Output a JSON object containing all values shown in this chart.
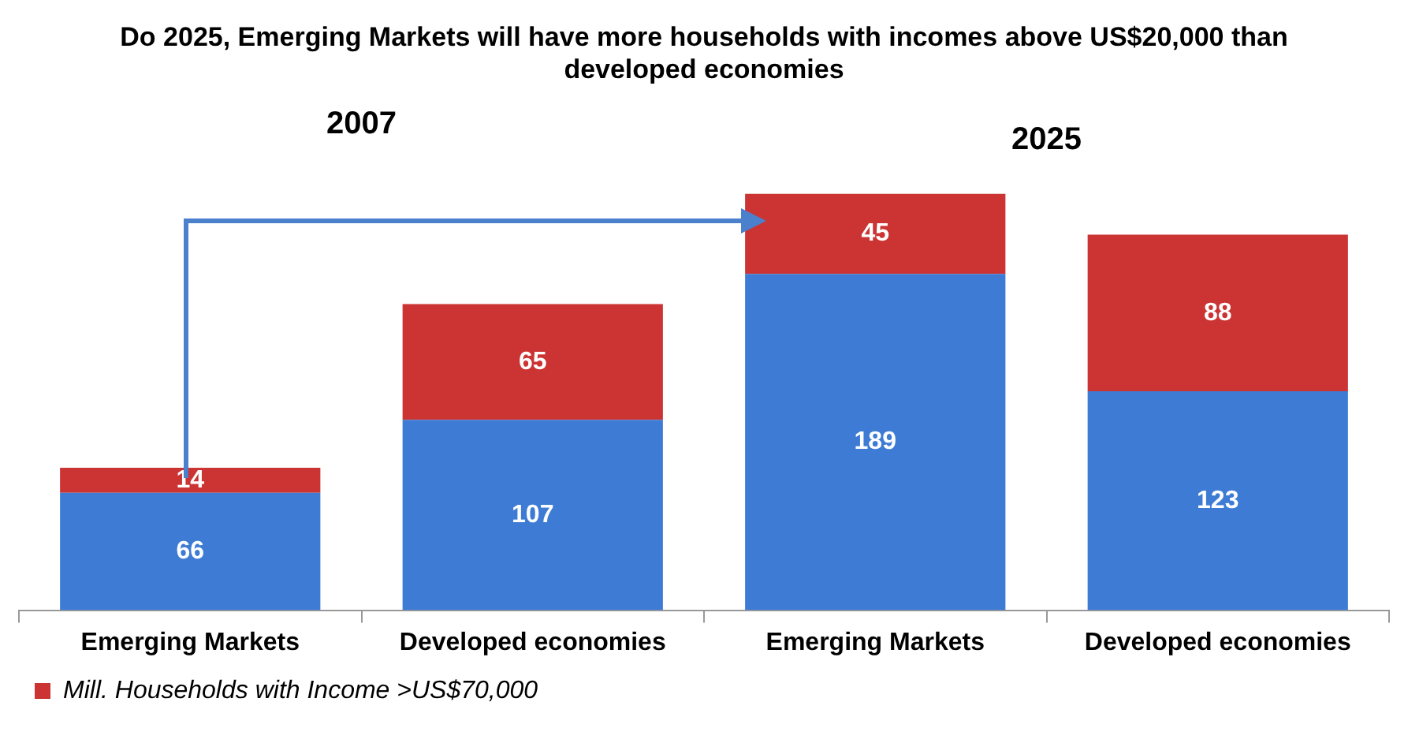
{
  "chart_data": {
    "type": "bar",
    "title": "Do 2025, Emerging Markets will have more households with incomes above US$20,000 than developed economies",
    "categories": [
      "Emerging Markets",
      "Developed economies",
      "Emerging Markets",
      "Developed economies"
    ],
    "stacked": true,
    "data_labels": true,
    "grid": false,
    "legend": "bottom left",
    "series": [
      {
        "color": "#3d7bd4",
        "values": [
          66,
          107,
          189,
          123
        ]
      },
      {
        "name": "Mill. Households with Income >US$70,000",
        "color": "#cc3333",
        "values": [
          14,
          65,
          45,
          88
        ]
      }
    ],
    "annotations": [
      "2007",
      "2025"
    ]
  }
}
